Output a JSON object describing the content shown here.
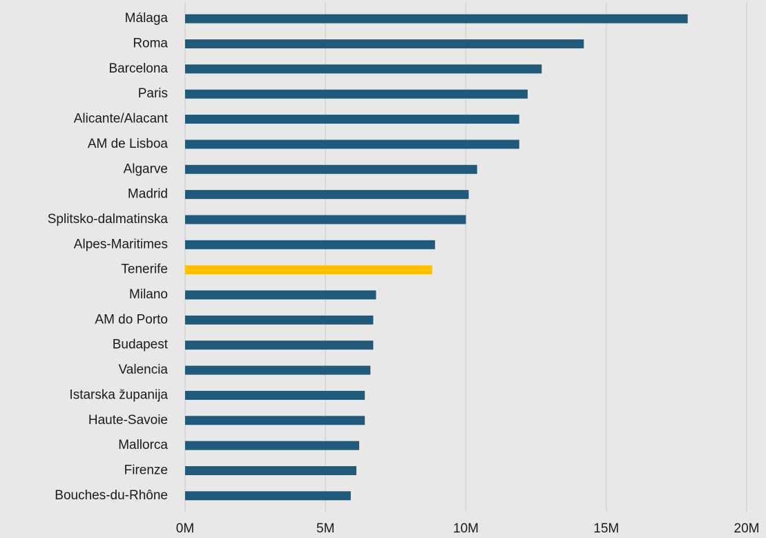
{
  "chart_data": {
    "type": "bar",
    "orientation": "horizontal",
    "categories": [
      "Málaga",
      "Roma",
      "Barcelona",
      "Paris",
      "Alicante/Alacant",
      "AM de Lisboa",
      "Algarve",
      "Madrid",
      "Splitsko-dalmatinska",
      "Alpes-Maritimes",
      "Tenerife",
      "Milano",
      "AM do Porto",
      "Budapest",
      "Valencia",
      "Istarska županija",
      "Haute-Savoie",
      "Mallorca",
      "Firenze",
      "Bouches-du-Rhône"
    ],
    "values": [
      17900000,
      14200000,
      12700000,
      12200000,
      11900000,
      11900000,
      10400000,
      10100000,
      10000000,
      8900000,
      8800000,
      6800000,
      6700000,
      6700000,
      6600000,
      6400000,
      6400000,
      6200000,
      6100000,
      5900000
    ],
    "colors": [
      "#1f5a7a",
      "#1f5a7a",
      "#1f5a7a",
      "#1f5a7a",
      "#1f5a7a",
      "#1f5a7a",
      "#1f5a7a",
      "#1f5a7a",
      "#1f5a7a",
      "#1f5a7a",
      "#ffc000",
      "#1f5a7a",
      "#1f5a7a",
      "#1f5a7a",
      "#1f5a7a",
      "#1f5a7a",
      "#1f5a7a",
      "#1f5a7a",
      "#1f5a7a",
      "#1f5a7a"
    ],
    "xlim": [
      0,
      20000000
    ],
    "xticks": [
      {
        "value": 0,
        "label": "0M"
      },
      {
        "value": 5000000,
        "label": "5M"
      },
      {
        "value": 10000000,
        "label": "10M"
      },
      {
        "value": 15000000,
        "label": "15M"
      },
      {
        "value": 20000000,
        "label": "20M"
      }
    ],
    "grid": true
  }
}
